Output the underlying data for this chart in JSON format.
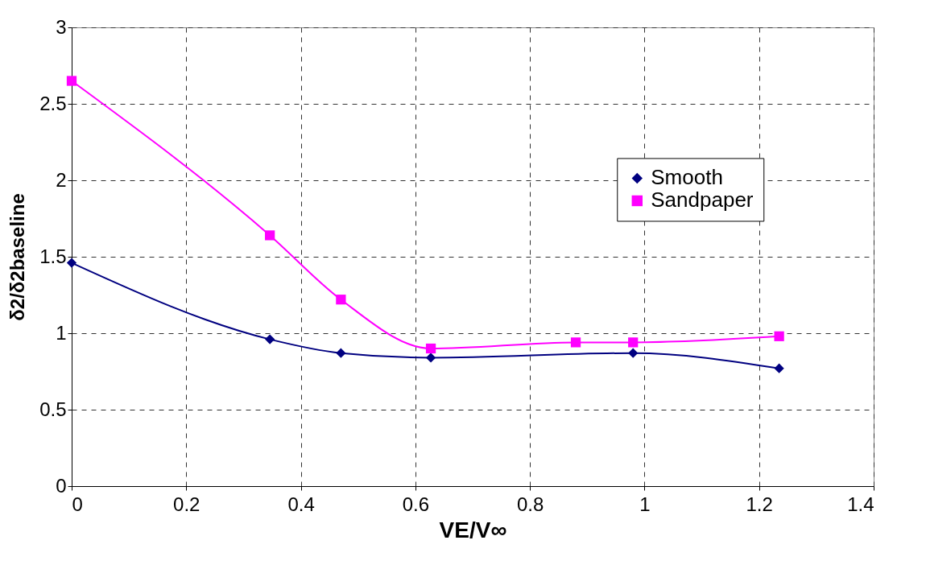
{
  "chart_data": {
    "type": "line",
    "xlabel": "VE/V∞",
    "ylabel": "δ2/δ2baseline",
    "xlim": [
      0,
      1.4
    ],
    "xticks": [
      0,
      0.2,
      0.4,
      0.6,
      0.8,
      1,
      1.2,
      1.4
    ],
    "ylim": [
      0,
      3
    ],
    "yticks": [
      0,
      0.5,
      1,
      1.5,
      2,
      2.5,
      3
    ],
    "grid": true,
    "legend": "right",
    "series": [
      {
        "name": "Smooth",
        "color": "#000080",
        "marker": "diamond",
        "x": [
          0,
          0.346,
          0.47,
          0.627,
          0.98,
          1.235
        ],
        "values": [
          1.46,
          0.96,
          0.87,
          0.84,
          0.87,
          0.77
        ]
      },
      {
        "name": "Sandpaper",
        "color": "#ff00ff",
        "marker": "square",
        "x": [
          0,
          0.346,
          0.47,
          0.627,
          0.88,
          0.98,
          1.235
        ],
        "values": [
          2.65,
          1.64,
          1.22,
          0.9,
          0.94,
          0.94,
          0.98
        ]
      }
    ]
  }
}
